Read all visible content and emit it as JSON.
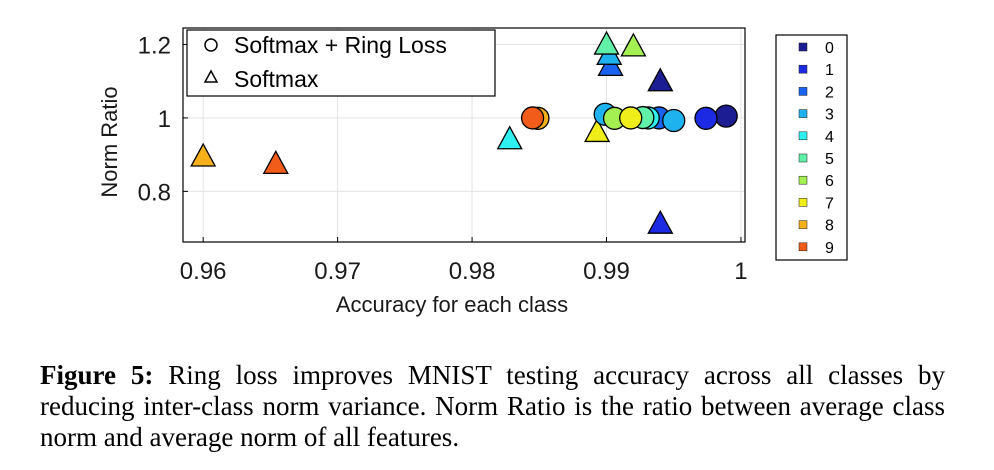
{
  "chart_data": {
    "type": "scatter",
    "xlabel": "Accuracy for each class",
    "ylabel": "Norm Ratio",
    "xlim": [
      0.9585,
      1.0003
    ],
    "ylim": [
      0.662,
      1.245
    ],
    "x_ticks": [
      0.96,
      0.97,
      0.98,
      0.99,
      1
    ],
    "x_tick_labels": [
      "0.96",
      "0.97",
      "0.98",
      "0.99",
      "1"
    ],
    "y_ticks": [
      0.8,
      1,
      1.2
    ],
    "y_tick_labels": [
      "0.8",
      "1",
      "1.2"
    ],
    "grid": true,
    "legend": {
      "position": "top-left",
      "entries": [
        {
          "marker": "circle",
          "label": "Softmax + Ring Loss"
        },
        {
          "marker": "triangle",
          "label": "Softmax"
        }
      ]
    },
    "class_legend": {
      "position": "right",
      "entries": [
        {
          "label": "0",
          "color": "#1d1d93"
        },
        {
          "label": "1",
          "color": "#1c2be3"
        },
        {
          "label": "2",
          "color": "#1a63ee"
        },
        {
          "label": "3",
          "color": "#1eb2ee"
        },
        {
          "label": "4",
          "color": "#2ef0f0"
        },
        {
          "label": "5",
          "color": "#60f0a8"
        },
        {
          "label": "6",
          "color": "#a4ef52"
        },
        {
          "label": "7",
          "color": "#f0ee1a"
        },
        {
          "label": "8",
          "color": "#f6b01a"
        },
        {
          "label": "9",
          "color": "#f25c1a"
        }
      ]
    },
    "series": [
      {
        "name": "Softmax + Ring Loss",
        "marker": "circle",
        "points": [
          {
            "class": "0",
            "x": 0.9989,
            "y": 1.005
          },
          {
            "class": "1",
            "x": 0.9974,
            "y": 0.999
          },
          {
            "class": "2",
            "x": 0.9939,
            "y": 1.0
          },
          {
            "class": "3",
            "x": 0.995,
            "y": 0.993
          },
          {
            "class": "3",
            "x": 0.9899,
            "y": 1.01
          },
          {
            "class": "4",
            "x": 0.9931,
            "y": 1.0
          },
          {
            "class": "5",
            "x": 0.9927,
            "y": 1.001
          },
          {
            "class": "6",
            "x": 0.9906,
            "y": 0.999
          },
          {
            "class": "7",
            "x": 0.9918,
            "y": 1.0
          },
          {
            "class": "8",
            "x": 0.9849,
            "y": 0.999
          },
          {
            "class": "9",
            "x": 0.9845,
            "y": 1.0
          }
        ]
      },
      {
        "name": "Softmax",
        "marker": "triangle",
        "points": [
          {
            "class": "0",
            "x": 0.994,
            "y": 1.098
          },
          {
            "class": "1",
            "x": 0.994,
            "y": 0.71
          },
          {
            "class": "2",
            "x": 0.9903,
            "y": 1.14
          },
          {
            "class": "3",
            "x": 0.9902,
            "y": 1.17
          },
          {
            "class": "4",
            "x": 0.9828,
            "y": 0.94
          },
          {
            "class": "5",
            "x": 0.99,
            "y": 1.198
          },
          {
            "class": "6",
            "x": 0.992,
            "y": 1.193
          },
          {
            "class": "7",
            "x": 0.9893,
            "y": 0.96
          },
          {
            "class": "8",
            "x": 0.96,
            "y": 0.893
          },
          {
            "class": "9",
            "x": 0.9654,
            "y": 0.873
          }
        ]
      }
    ]
  },
  "caption": {
    "figure_label": "Figure 5:",
    "text": " Ring loss improves MNIST testing accuracy across all classes by reducing inter-class norm variance.  Norm Ratio is the ratio between average class norm and average norm of all features."
  }
}
